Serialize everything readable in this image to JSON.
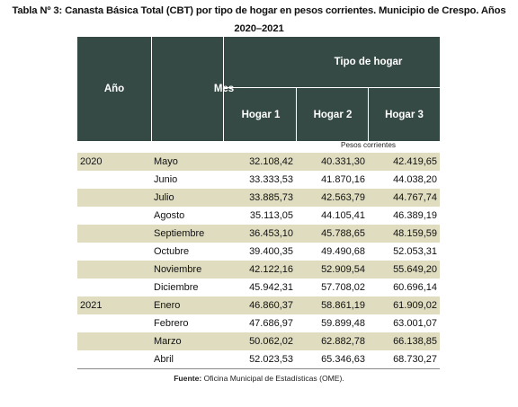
{
  "title": "Tabla Nº 3: Canasta Básica Total (CBT) por tipo de hogar en pesos corrientes. Municipio de Crespo. Años 2020–2021",
  "header": {
    "anio": "Año",
    "mes": "Mes",
    "tipo_hogar": "Tipo de hogar",
    "hogar1": "Hogar 1",
    "hogar2": "Hogar 2",
    "hogar3": "Hogar 3"
  },
  "unit_label": "Pesos corrientes",
  "rows": [
    {
      "year": "2020",
      "month": "Mayo",
      "h1": "32.108,42",
      "h2": "40.331,30",
      "h3": "42.419,65"
    },
    {
      "year": "",
      "month": "Junio",
      "h1": "33.333,53",
      "h2": "41.870,16",
      "h3": "44.038,20"
    },
    {
      "year": "",
      "month": "Julio",
      "h1": "33.885,73",
      "h2": "42.563,79",
      "h3": "44.767,74"
    },
    {
      "year": "",
      "month": "Agosto",
      "h1": "35.113,05",
      "h2": "44.105,41",
      "h3": "46.389,19"
    },
    {
      "year": "",
      "month": "Septiembre",
      "h1": "36.453,10",
      "h2": "45.788,65",
      "h3": "48.159,59"
    },
    {
      "year": "",
      "month": "Octubre",
      "h1": "39.400,35",
      "h2": "49.490,68",
      "h3": "52.053,31"
    },
    {
      "year": "",
      "month": "Noviembre",
      "h1": "42.122,16",
      "h2": "52.909,54",
      "h3": "55.649,20"
    },
    {
      "year": "",
      "month": "Diciembre",
      "h1": "45.942,31",
      "h2": "57.708,02",
      "h3": "60.696,14"
    },
    {
      "year": "2021",
      "month": "Enero",
      "h1": "46.860,37",
      "h2": "58.861,19",
      "h3": "61.909,02"
    },
    {
      "year": "",
      "month": "Febrero",
      "h1": "47.686,97",
      "h2": "59.899,48",
      "h3": "63.001,07"
    },
    {
      "year": "",
      "month": "Marzo",
      "h1": "50.062,02",
      "h2": "62.882,78",
      "h3": "66.138,85"
    },
    {
      "year": "",
      "month": "Abril",
      "h1": "52.023,53",
      "h2": "65.346,63",
      "h3": "68.730,27"
    }
  ],
  "source": {
    "label": "Fuente:",
    "text": "Oficina Municipal de Estadísticas (OME)."
  }
}
